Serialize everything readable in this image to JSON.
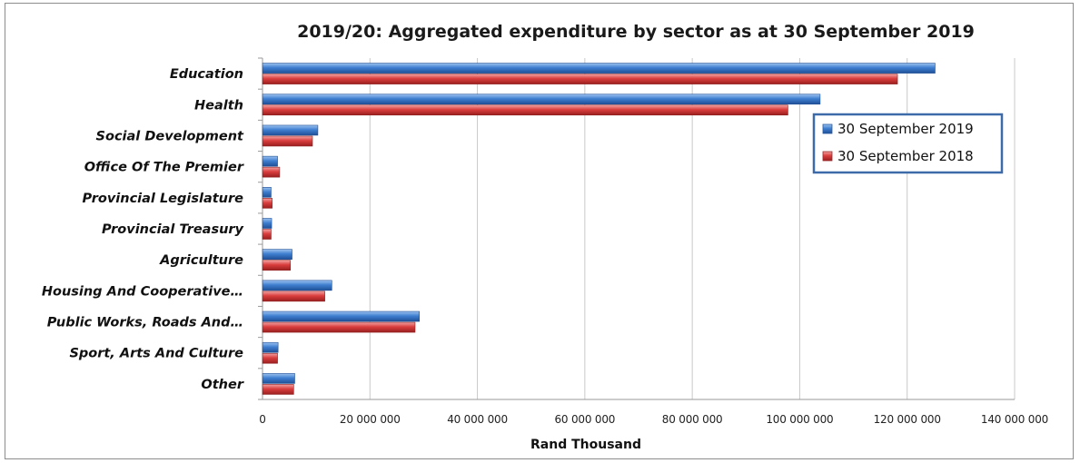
{
  "chart_data": {
    "type": "bar",
    "orientation": "horizontal",
    "title": "2019/20: Aggregated expenditure by sector as at 30 September 2019",
    "xlabel": "Rand Thousand",
    "ylabel": "",
    "xlim": [
      0,
      140000000
    ],
    "x_ticks": [
      "0",
      "20 000 000",
      "40 000 000",
      "60 000 000",
      "80 000 000",
      "100 000 000",
      "120 000 000",
      "140 000 000"
    ],
    "grid": "vertical",
    "legend_position": "right",
    "categories": [
      "Education",
      "Health",
      "Social Development",
      "Office Of The Premier",
      "Provincial Legislature",
      "Provincial Treasury",
      "Agriculture",
      "Housing And Cooperative…",
      "Public Works, Roads And…",
      "Sport, Arts And Culture",
      "Other"
    ],
    "series": [
      {
        "name": "30 September 2019",
        "color": "#3a78c8",
        "values": [
          125200000,
          103800000,
          10300000,
          2800000,
          1600000,
          1700000,
          5500000,
          12900000,
          29200000,
          2900000,
          6000000
        ]
      },
      {
        "name": "30 September 2018",
        "color": "#d93b3b",
        "values": [
          118200000,
          97800000,
          9300000,
          3200000,
          1800000,
          1600000,
          5200000,
          11600000,
          28400000,
          2800000,
          5800000
        ]
      }
    ]
  }
}
